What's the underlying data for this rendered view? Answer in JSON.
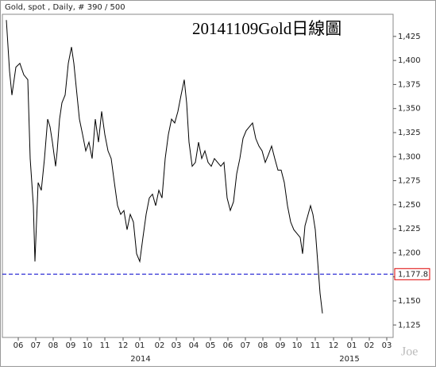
{
  "chart_data": {
    "type": "line",
    "title": "20141109Gold日線圖",
    "subtitle": "Gold, spot , Daily, # 390 / 500",
    "watermark": "Joe",
    "color": "#000000",
    "xlim": [
      0,
      492
    ],
    "ylim": [
      1112,
      1448
    ],
    "yticks": [
      {
        "value": 1125,
        "label": "1,125"
      },
      {
        "value": 1150,
        "label": "1,150"
      },
      {
        "value": 1175,
        "label": "1,175"
      },
      {
        "value": 1200,
        "label": "1,200"
      },
      {
        "value": 1225,
        "label": "1,225"
      },
      {
        "value": 1250,
        "label": "1,250"
      },
      {
        "value": 1275,
        "label": "1,275"
      },
      {
        "value": 1300,
        "label": "1,300"
      },
      {
        "value": 1325,
        "label": "1,325"
      },
      {
        "value": 1350,
        "label": "1,350"
      },
      {
        "value": 1375,
        "label": "1,375"
      },
      {
        "value": 1400,
        "label": "1,400"
      },
      {
        "value": 1425,
        "label": "1,425"
      }
    ],
    "xticks": [
      {
        "value": 20,
        "label": "06"
      },
      {
        "value": 42,
        "label": "07"
      },
      {
        "value": 64,
        "label": "08"
      },
      {
        "value": 86,
        "label": "09"
      },
      {
        "value": 107,
        "label": "10"
      },
      {
        "value": 129,
        "label": "11"
      },
      {
        "value": 152,
        "label": "12"
      },
      {
        "value": 173,
        "label": "01"
      },
      {
        "value": 198,
        "label": "02"
      },
      {
        "value": 219,
        "label": "03"
      },
      {
        "value": 241,
        "label": "04"
      },
      {
        "value": 262,
        "label": "05"
      },
      {
        "value": 284,
        "label": "06"
      },
      {
        "value": 306,
        "label": "07"
      },
      {
        "value": 328,
        "label": "08"
      },
      {
        "value": 350,
        "label": "09"
      },
      {
        "value": 371,
        "label": "10"
      },
      {
        "value": 394,
        "label": "11"
      },
      {
        "value": 417,
        "label": "12"
      },
      {
        "value": 440,
        "label": "01"
      },
      {
        "value": 462,
        "label": "02"
      },
      {
        "value": 484,
        "label": "03"
      }
    ],
    "year_labels": [
      {
        "value": 174,
        "label": "2014"
      },
      {
        "value": 437,
        "label": "2015"
      }
    ],
    "reference_line": {
      "value": 1177.8,
      "label": "1,177.8",
      "color": "#0000cc"
    },
    "x": [
      5,
      9,
      12,
      17,
      22,
      27,
      32,
      35,
      39,
      41,
      45,
      49,
      53,
      57,
      60,
      63,
      67,
      69,
      72,
      75,
      79,
      83,
      87,
      90,
      93,
      97,
      101,
      105,
      109,
      113,
      117,
      121,
      125,
      129,
      133,
      137,
      141,
      145,
      149,
      153,
      157,
      161,
      165,
      169,
      173,
      177,
      181,
      185,
      189,
      193,
      197,
      201,
      205,
      209,
      213,
      217,
      221,
      225,
      229,
      232,
      235,
      239,
      243,
      247,
      251,
      255,
      259,
      263,
      267,
      271,
      275,
      279,
      283,
      287,
      291,
      295,
      299,
      303,
      307,
      311,
      315,
      319,
      323,
      327,
      331,
      335,
      339,
      343,
      347,
      351,
      355,
      359,
      363,
      367,
      371,
      375,
      378,
      381,
      385,
      388,
      391,
      394,
      397,
      400,
      403
    ],
    "values": [
      1442,
      1389,
      1364,
      1393,
      1397,
      1385,
      1380,
      1298,
      1249,
      1191,
      1273,
      1265,
      1298,
      1339,
      1331,
      1315,
      1290,
      1306,
      1339,
      1356,
      1364,
      1397,
      1414,
      1397,
      1372,
      1339,
      1323,
      1306,
      1315,
      1298,
      1339,
      1315,
      1347,
      1323,
      1306,
      1298,
      1273,
      1249,
      1240,
      1244,
      1224,
      1240,
      1232,
      1199,
      1191,
      1216,
      1240,
      1257,
      1261,
      1249,
      1265,
      1257,
      1298,
      1323,
      1339,
      1335,
      1347,
      1364,
      1380,
      1356,
      1315,
      1290,
      1294,
      1315,
      1298,
      1306,
      1294,
      1290,
      1298,
      1294,
      1290,
      1294,
      1257,
      1244,
      1253,
      1282,
      1298,
      1319,
      1327,
      1331,
      1335,
      1319,
      1311,
      1306,
      1294,
      1302,
      1311,
      1298,
      1286,
      1286,
      1273,
      1249,
      1232,
      1224,
      1220,
      1216,
      1199,
      1228,
      1240,
      1249,
      1240,
      1224,
      1191,
      1158,
      1137
    ]
  }
}
